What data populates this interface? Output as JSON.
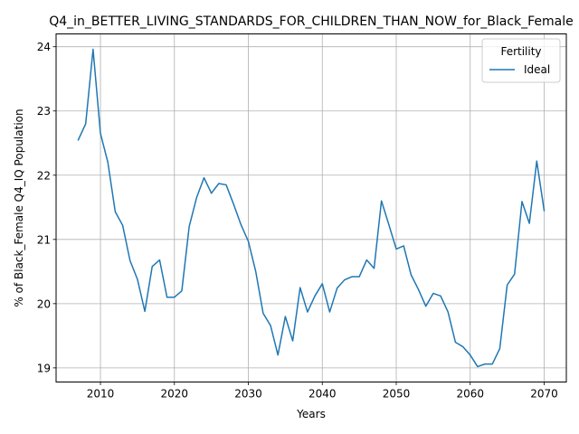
{
  "chart_data": {
    "type": "line",
    "title": "Q4_in_BETTER_LIVING_STANDARDS_FOR_CHILDREN_THAN_NOW_for_Black_Female",
    "xlabel": "Years",
    "ylabel": "% of Black_Female Q4_IQ Population",
    "xlim": [
      2004,
      2073
    ],
    "ylim": [
      18.78,
      24.2
    ],
    "xticks": [
      2010,
      2020,
      2030,
      2040,
      2050,
      2060,
      2070
    ],
    "yticks": [
      19,
      20,
      21,
      22,
      23,
      24
    ],
    "grid": true,
    "legend": {
      "title": "Fertility",
      "placement": "top-right"
    },
    "series": [
      {
        "name": "Ideal",
        "color": "#1f77b4",
        "x": [
          2007,
          2008,
          2009,
          2010,
          2011,
          2012,
          2013,
          2014,
          2015,
          2016,
          2017,
          2018,
          2019,
          2020,
          2021,
          2022,
          2023,
          2024,
          2025,
          2026,
          2027,
          2028,
          2029,
          2030,
          2031,
          2032,
          2033,
          2034,
          2035,
          2036,
          2037,
          2038,
          2039,
          2040,
          2041,
          2042,
          2043,
          2044,
          2045,
          2046,
          2047,
          2048,
          2049,
          2050,
          2051,
          2052,
          2053,
          2054,
          2055,
          2056,
          2057,
          2058,
          2059,
          2060,
          2061,
          2062,
          2063,
          2064,
          2065,
          2066,
          2067,
          2068,
          2069,
          2070
        ],
        "values": [
          22.55,
          22.8,
          23.96,
          22.65,
          22.2,
          21.43,
          21.22,
          20.67,
          20.38,
          19.88,
          20.58,
          20.68,
          20.1,
          20.1,
          20.2,
          21.2,
          21.65,
          21.96,
          21.72,
          21.87,
          21.85,
          21.55,
          21.23,
          20.97,
          20.5,
          19.85,
          19.66,
          19.2,
          19.8,
          19.42,
          20.25,
          19.87,
          20.12,
          20.31,
          19.87,
          20.24,
          20.37,
          20.42,
          20.42,
          20.68,
          20.55,
          21.6,
          21.23,
          20.85,
          20.9,
          20.45,
          20.22,
          19.96,
          20.16,
          20.12,
          19.87,
          19.4,
          19.33,
          19.2,
          19.02,
          19.06,
          19.06,
          19.3,
          20.29,
          20.46,
          21.59,
          21.25,
          22.22,
          21.45
        ]
      }
    ]
  }
}
